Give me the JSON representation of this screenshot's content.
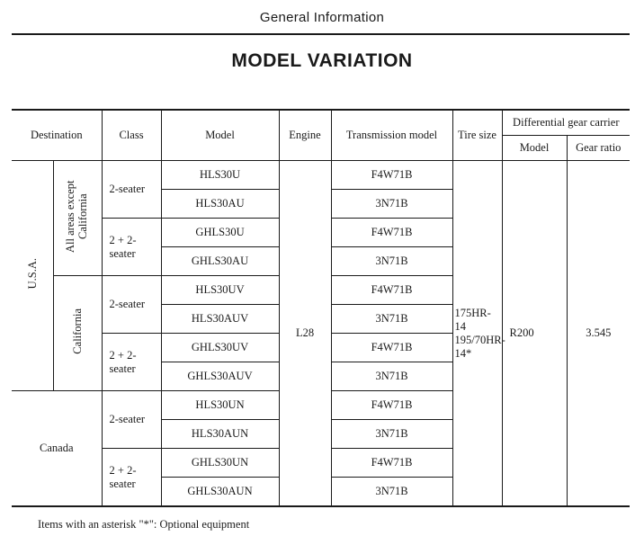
{
  "header": {
    "section": "General Information",
    "title": "MODEL VARIATION"
  },
  "table": {
    "headers": {
      "destination": "Destination",
      "class": "Class",
      "model": "Model",
      "engine": "Engine",
      "transmission": "Transmission model",
      "tire": "Tire size",
      "diff": "Differential gear carrier",
      "diff_model": "Model",
      "diff_ratio": "Gear ratio"
    },
    "destinations": {
      "usa": "U.S.A.",
      "usa_all": "All areas except California",
      "usa_cal": "California",
      "canada": "Canada"
    },
    "classes": {
      "two_seater": "2-seater",
      "two_plus_two": "2 + 2-seater"
    },
    "rows": [
      {
        "model": "HLS30U",
        "transmission": "F4W71B"
      },
      {
        "model": "HLS30AU",
        "transmission": "3N71B"
      },
      {
        "model": "GHLS30U",
        "transmission": "F4W71B"
      },
      {
        "model": "GHLS30AU",
        "transmission": "3N71B"
      },
      {
        "model": "HLS30UV",
        "transmission": "F4W71B"
      },
      {
        "model": "HLS30AUV",
        "transmission": "3N71B"
      },
      {
        "model": "GHLS30UV",
        "transmission": "F4W71B"
      },
      {
        "model": "GHLS30AUV",
        "transmission": "3N71B"
      },
      {
        "model": "HLS30UN",
        "transmission": "F4W71B"
      },
      {
        "model": "HLS30AUN",
        "transmission": "3N71B"
      },
      {
        "model": "GHLS30UN",
        "transmission": "F4W71B"
      },
      {
        "model": "GHLS30AUN",
        "transmission": "3N71B"
      }
    ],
    "engine": "L28",
    "tire": "175HR-14 195/70HR-14*",
    "diff_model": "R200",
    "diff_ratio": "3.545"
  },
  "footnote": "Items with an asterisk \"*\": Optional equipment"
}
